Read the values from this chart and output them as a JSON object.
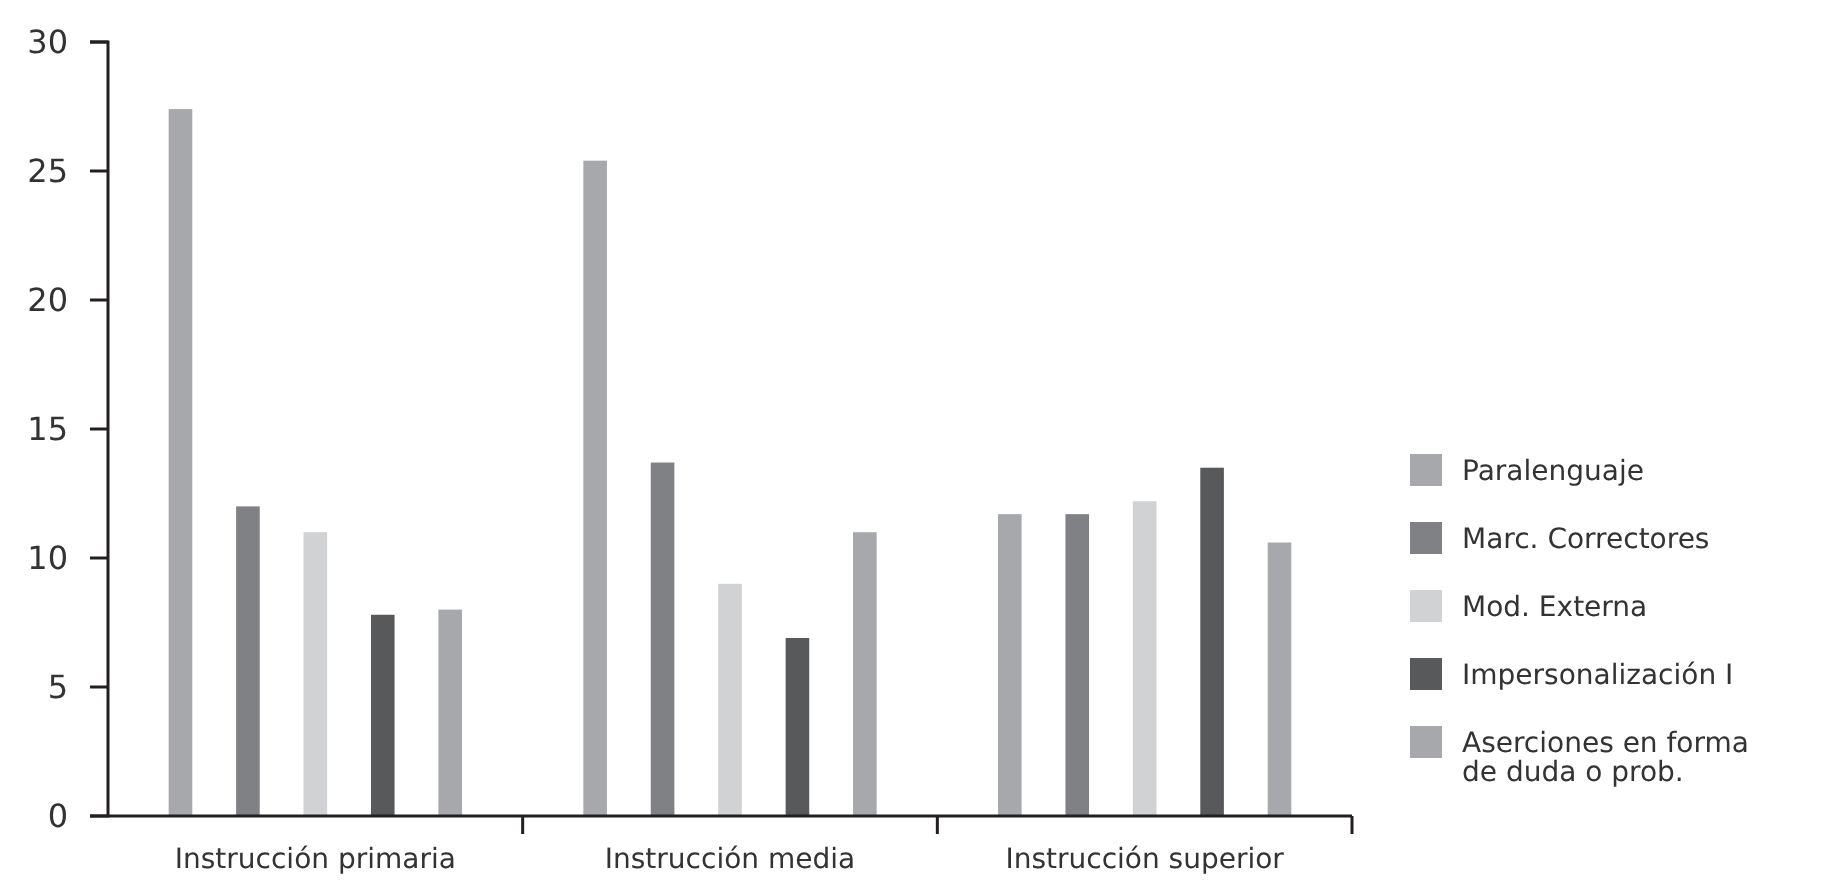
{
  "chart_data": {
    "type": "bar",
    "categories": [
      "Instrucción primaria",
      "Instrucción media",
      "Instrucción superior"
    ],
    "series": [
      {
        "name": "Paralenguaje",
        "color": "#a7a8ab",
        "values": [
          27.4,
          25.4,
          11.7
        ]
      },
      {
        "name": "Marc. Correctores",
        "color": "#808184",
        "values": [
          12.0,
          13.7,
          11.7
        ]
      },
      {
        "name": "Mod. Externa",
        "color": "#d1d2d4",
        "values": [
          11.0,
          9.0,
          12.2
        ]
      },
      {
        "name": "Impersonalización I",
        "color": "#58595b",
        "values": [
          7.8,
          6.9,
          13.5
        ]
      },
      {
        "name": "Aserciones en forma de duda o prob.",
        "color": "#a7a8ab",
        "values": [
          8.0,
          11.0,
          10.6
        ]
      }
    ],
    "ylim": [
      0,
      30
    ],
    "yticks": [
      0,
      5,
      10,
      15,
      20,
      25,
      30
    ],
    "grid": false,
    "legend": "right"
  }
}
